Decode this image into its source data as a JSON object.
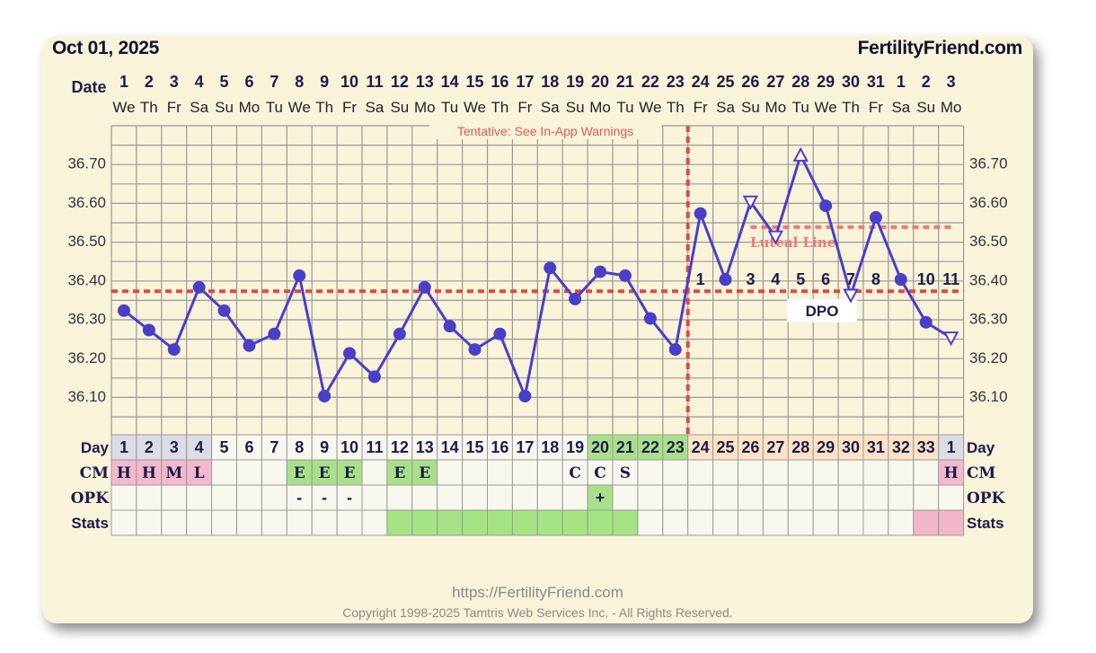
{
  "header": {
    "date": "Oct 01, 2025",
    "brand": "FertilityFriend.com"
  },
  "footer": {
    "url": "https://FertilityFriend.com",
    "copyright": "Copyright 1998-2025 Tamtris Web Services Inc. - All Rights Reserved."
  },
  "colors": {
    "background": "#f8f3d9",
    "temp_line": "#4a3fc8",
    "coverline": "#e04848",
    "luteal_line": "#f07878",
    "grid": "#999999",
    "cm_pink": "#f4b8cc",
    "cm_green": "#a8e08a",
    "luteal_cell": "#fde3c6",
    "stats_green": "#a3e383",
    "stats_pink": "#f3b5c8"
  },
  "chart_data": {
    "type": "line",
    "title": "",
    "tentative_note": "Tentative: See In-App Warnings",
    "row_labels": {
      "date": "Date",
      "day": "Day",
      "cm": "CM",
      "opk": "OPK",
      "stats": "Stats",
      "dpo": "DPO",
      "luteal_line": "Luteal Line"
    },
    "dates": [
      "1",
      "2",
      "3",
      "4",
      "5",
      "6",
      "7",
      "8",
      "9",
      "10",
      "11",
      "12",
      "13",
      "14",
      "15",
      "16",
      "17",
      "18",
      "19",
      "20",
      "21",
      "22",
      "23",
      "24",
      "25",
      "26",
      "27",
      "28",
      "29",
      "30",
      "31",
      "1",
      "2",
      "3"
    ],
    "weekdays": [
      "We",
      "Th",
      "Fr",
      "Sa",
      "Su",
      "Mo",
      "Tu",
      "We",
      "Th",
      "Fr",
      "Sa",
      "Su",
      "Mo",
      "Tu",
      "We",
      "Th",
      "Fr",
      "Sa",
      "Su",
      "Mo",
      "Tu",
      "We",
      "Th",
      "Fr",
      "Sa",
      "Su",
      "Mo",
      "Tu",
      "We",
      "Th",
      "Fr",
      "Sa",
      "Su",
      "Mo"
    ],
    "cycle_days": [
      "1",
      "2",
      "3",
      "4",
      "5",
      "6",
      "7",
      "8",
      "9",
      "10",
      "11",
      "12",
      "13",
      "14",
      "15",
      "16",
      "17",
      "18",
      "19",
      "20",
      "21",
      "22",
      "23",
      "24",
      "25",
      "26",
      "27",
      "28",
      "29",
      "30",
      "31",
      "32",
      "33",
      "1"
    ],
    "y_ticks": [
      "36.10",
      "36.20",
      "36.30",
      "36.40",
      "36.50",
      "36.60",
      "36.70"
    ],
    "ylim": [
      36.0,
      36.8
    ],
    "temperatures": [
      36.32,
      36.27,
      36.22,
      36.38,
      36.32,
      36.23,
      36.26,
      36.41,
      36.1,
      36.21,
      36.15,
      36.26,
      36.38,
      36.28,
      36.22,
      36.26,
      36.1,
      36.43,
      36.35,
      36.42,
      36.41,
      36.3,
      36.22,
      36.57,
      36.4,
      36.6,
      36.51,
      36.72,
      36.59,
      36.36,
      36.56,
      36.4,
      36.29,
      36.25
    ],
    "marker_style": [
      "dot",
      "dot",
      "dot",
      "dot",
      "dot",
      "dot",
      "dot",
      "dot",
      "dot",
      "dot",
      "dot",
      "dot",
      "dot",
      "dot",
      "dot",
      "dot",
      "dot",
      "dot",
      "dot",
      "dot",
      "dot",
      "dot",
      "dot",
      "dot",
      "dot",
      "tri",
      "tri",
      "tri",
      "dot",
      "tri",
      "dot",
      "dot",
      "dot",
      "tri"
    ],
    "coverline": 36.37,
    "luteal_line": 36.535,
    "ovulation_index": 22,
    "dpo": [
      "1",
      "2",
      "3",
      "4",
      "5",
      "6",
      "7",
      "8",
      "9",
      "10",
      "11"
    ],
    "cm": [
      "H",
      "H",
      "M",
      "L",
      "",
      "",
      "",
      "E",
      "E",
      "E",
      "",
      "E",
      "E",
      "",
      "",
      "",
      "",
      "",
      "C",
      "C",
      "S",
      "",
      "",
      "",
      "",
      "",
      "",
      "",
      "",
      "",
      "",
      "",
      "",
      "H"
    ],
    "cm_colors": [
      "pink",
      "pink",
      "pink",
      "pink",
      "",
      "",
      "",
      "green",
      "green",
      "green",
      "",
      "green",
      "green",
      "",
      "",
      "",
      "",
      "",
      "",
      "",
      "",
      "",
      "",
      "",
      "",
      "",
      "",
      "",
      "",
      "",
      "",
      "",
      "",
      "pink"
    ],
    "opk": [
      "",
      "",
      "",
      "",
      "",
      "",
      "",
      "-",
      "-",
      "-",
      "",
      "",
      "",
      "",
      "",
      "",
      "",
      "",
      "",
      "+",
      "",
      "",
      "",
      "",
      "",
      "",
      "",
      "",
      "",
      "",
      "",
      "",
      "",
      ""
    ],
    "opk_colors": [
      "",
      "",
      "",
      "",
      "",
      "",
      "",
      "",
      "",
      "",
      "",
      "",
      "",
      "",
      "",
      "",
      "",
      "",
      "",
      "green",
      "",
      "",
      "",
      "",
      "",
      "",
      "",
      "",
      "",
      "",
      "",
      "",
      "",
      ""
    ],
    "stats_colors": [
      "",
      "",
      "",
      "",
      "",
      "",
      "",
      "",
      "",
      "",
      "",
      "green",
      "green",
      "green",
      "green",
      "green",
      "green",
      "green",
      "green",
      "green",
      "green",
      "",
      "",
      "",
      "",
      "",
      "",
      "",
      "",
      "",
      "",
      "",
      "pink",
      "pink"
    ],
    "day_colors": [
      "gray",
      "gray",
      "gray",
      "gray",
      "",
      "",
      "",
      "",
      "",
      "",
      "",
      "",
      "",
      "",
      "",
      "",
      "",
      "",
      "",
      "green",
      "green",
      "green",
      "green",
      "peach",
      "peach",
      "peach",
      "peach",
      "peach",
      "peach",
      "peach",
      "peach",
      "peach",
      "peach",
      "gray"
    ]
  }
}
